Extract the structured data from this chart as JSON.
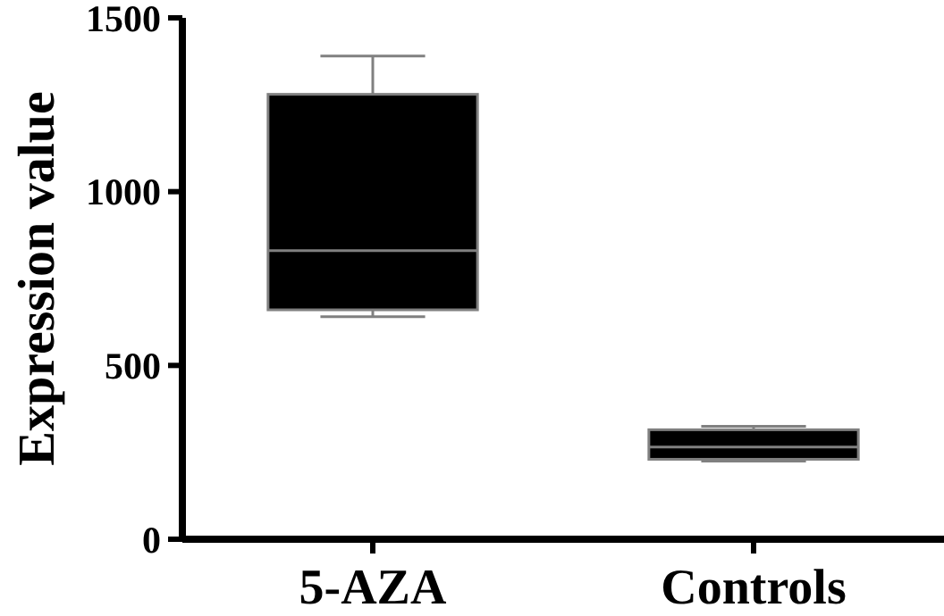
{
  "chart_data": {
    "type": "box",
    "ylabel": "Expression value",
    "categories": [
      "5-AZA",
      "Controls"
    ],
    "color": "#000000",
    "boxes": [
      {
        "low": 640,
        "q1": 660,
        "median": 830,
        "q3": 1280,
        "high": 1390
      },
      {
        "low": 225,
        "q1": 230,
        "median": 265,
        "q3": 315,
        "high": 325
      }
    ],
    "ylim": [
      0,
      1500
    ],
    "yticks": [
      0,
      500,
      1000,
      1500
    ],
    "grid": false
  }
}
